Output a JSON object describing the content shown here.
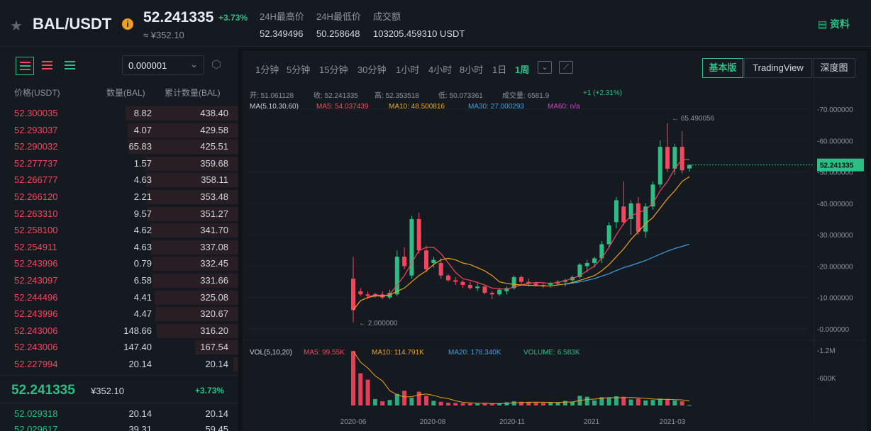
{
  "header": {
    "pair": "BAL/USDT",
    "info_icon": "i",
    "price": "52.241335",
    "change": "+3.73%",
    "price_cny": "≈ ¥352.10",
    "stats": [
      {
        "label": "24H最高价",
        "value": "52.349496"
      },
      {
        "label": "24H最低价",
        "value": "50.258648"
      },
      {
        "label": "成交额",
        "value": "103205.459310 USDT"
      }
    ],
    "profile_label": "资料"
  },
  "orderbook": {
    "precision": "0.000001",
    "columns": [
      "价格(USDT)",
      "数量(BAL)",
      "累计数量(BAL)"
    ],
    "asks": [
      {
        "price": "52.300035",
        "amount": "8.82",
        "total": "438.40"
      },
      {
        "price": "52.293037",
        "amount": "4.07",
        "total": "429.58"
      },
      {
        "price": "52.290032",
        "amount": "65.83",
        "total": "425.51"
      },
      {
        "price": "52.277737",
        "amount": "1.57",
        "total": "359.68"
      },
      {
        "price": "52.266777",
        "amount": "4.63",
        "total": "358.11"
      },
      {
        "price": "52.266120",
        "amount": "2.21",
        "total": "353.48"
      },
      {
        "price": "52.263310",
        "amount": "9.57",
        "total": "351.27"
      },
      {
        "price": "52.258100",
        "amount": "4.62",
        "total": "341.70"
      },
      {
        "price": "52.254911",
        "amount": "4.63",
        "total": "337.08"
      },
      {
        "price": "52.243996",
        "amount": "0.79",
        "total": "332.45"
      },
      {
        "price": "52.243097",
        "amount": "6.58",
        "total": "331.66"
      },
      {
        "price": "52.244496",
        "amount": "4.41",
        "total": "325.08"
      },
      {
        "price": "52.243996",
        "amount": "4.47",
        "total": "320.67"
      },
      {
        "price": "52.243006",
        "amount": "148.66",
        "total": "316.20"
      },
      {
        "price": "52.243006",
        "amount": "147.40",
        "total": "167.54"
      },
      {
        "price": "52.227994",
        "amount": "20.14",
        "total": "20.14"
      }
    ],
    "mid": {
      "price": "52.241335",
      "cny": "¥352.10",
      "change": "+3.73%"
    },
    "bids": [
      {
        "price": "52.029318",
        "amount": "20.14",
        "total": "20.14"
      },
      {
        "price": "52.029617",
        "amount": "39.31",
        "total": "59.45"
      }
    ]
  },
  "chart": {
    "timeframes": [
      "1分钟",
      "5分钟",
      "15分钟",
      "30分钟",
      "1小时",
      "4小时",
      "8小时",
      "1日",
      "1周"
    ],
    "active_timeframe": "1周",
    "views": [
      "基本版",
      "TradingView",
      "深度图"
    ],
    "active_view": "基本版",
    "ohlc": [
      {
        "label": "开:",
        "value": "51.061128"
      },
      {
        "label": "收:",
        "value": "52.241335"
      },
      {
        "label": "高:",
        "value": "52.353518"
      },
      {
        "label": "低:",
        "value": "50.073361"
      },
      {
        "label": "成交量:",
        "value": "6581.9"
      },
      {
        "label": "",
        "value": "+1 (+2.31%)"
      }
    ],
    "ma_label": "MA(5,10,30,60)",
    "ma_values": [
      {
        "label": "MA5: 54.037439",
        "color": "#f6465d"
      },
      {
        "label": "MA10: 48.500816",
        "color": "#f0a020"
      },
      {
        "label": "MA30: 27.000293",
        "color": "#3ba0e6"
      },
      {
        "label": "MA60: n/a",
        "color": "#d63cd6"
      }
    ],
    "vol_label": "VOL(5,10,20)",
    "vol_values": [
      {
        "label": "MA5: 99.55K",
        "color": "#f6465d"
      },
      {
        "label": "MA10: 114.791K",
        "color": "#f0a020"
      },
      {
        "label": "MA20: 178.340K",
        "color": "#3ba0e6"
      },
      {
        "label": "VOLUME: 6.583K",
        "color": "#2ebd85"
      }
    ],
    "max_label": "65.490056",
    "min_label": "2.000000",
    "current_price_tag": "52.241335",
    "colors": {
      "up": "#2ebd85",
      "down": "#f6465d",
      "ma5": "#f6465d",
      "ma10": "#f0a020",
      "ma30": "#3ba0e6"
    }
  },
  "chart_data": {
    "type": "candlestick",
    "y_ticks": [
      "70.000000",
      "60.000000",
      "50.000000",
      "40.000000",
      "30.000000",
      "20.000000",
      "10.000000",
      "0.000000"
    ],
    "vol_ticks": [
      "1.2M",
      "600K"
    ],
    "x_ticks": [
      "2020-06",
      "2020-08",
      "2020-11",
      "2021",
      "2021-03"
    ],
    "ylim": [
      0,
      70
    ],
    "volume_max": 1200000,
    "candles": [
      {
        "o": 16,
        "h": 23,
        "l": 2,
        "c": 6,
        "v": 1180000
      },
      {
        "o": 12,
        "h": 13,
        "l": 10.5,
        "c": 11,
        "v": 700000
      },
      {
        "o": 11,
        "h": 12,
        "l": 9.5,
        "c": 10.5,
        "v": 560000
      },
      {
        "o": 10.5,
        "h": 11.5,
        "l": 10,
        "c": 11,
        "v": 140000
      },
      {
        "o": 11,
        "h": 12,
        "l": 9.5,
        "c": 10,
        "v": 90000
      },
      {
        "o": 10,
        "h": 12.5,
        "l": 9.5,
        "c": 11.5,
        "v": 120000
      },
      {
        "o": 11,
        "h": 25,
        "l": 10.5,
        "c": 23,
        "v": 250000
      },
      {
        "o": 23,
        "h": 26,
        "l": 19,
        "c": 20,
        "v": 320000
      },
      {
        "o": 17,
        "h": 36,
        "l": 16,
        "c": 35,
        "v": 170000
      },
      {
        "o": 35,
        "h": 37,
        "l": 24,
        "c": 25,
        "v": 300000
      },
      {
        "o": 25,
        "h": 26.5,
        "l": 18,
        "c": 19,
        "v": 210000
      },
      {
        "o": 21,
        "h": 23,
        "l": 19.5,
        "c": 22,
        "v": 100000
      },
      {
        "o": 21,
        "h": 22.5,
        "l": 16,
        "c": 17,
        "v": 80000
      },
      {
        "o": 17,
        "h": 17.5,
        "l": 15,
        "c": 15.5,
        "v": 60000
      },
      {
        "o": 15.5,
        "h": 16.5,
        "l": 14,
        "c": 15,
        "v": 55000
      },
      {
        "o": 15,
        "h": 15.5,
        "l": 13,
        "c": 14,
        "v": 50000
      },
      {
        "o": 14,
        "h": 15,
        "l": 12.5,
        "c": 13,
        "v": 45000
      },
      {
        "o": 13,
        "h": 14.5,
        "l": 12,
        "c": 13.5,
        "v": 40000
      },
      {
        "o": 13.5,
        "h": 14,
        "l": 11,
        "c": 11.5,
        "v": 48000
      },
      {
        "o": 11.5,
        "h": 12,
        "l": 9.5,
        "c": 11,
        "v": 35000
      },
      {
        "o": 11,
        "h": 13,
        "l": 10.5,
        "c": 12.5,
        "v": 40000
      },
      {
        "o": 12,
        "h": 13.5,
        "l": 11,
        "c": 13,
        "v": 70000
      },
      {
        "o": 13,
        "h": 17,
        "l": 12.5,
        "c": 16.5,
        "v": 90000
      },
      {
        "o": 16.5,
        "h": 17,
        "l": 14,
        "c": 15,
        "v": 80000
      },
      {
        "o": 15,
        "h": 16,
        "l": 13.5,
        "c": 14.5,
        "v": 70000
      },
      {
        "o": 14.5,
        "h": 15,
        "l": 13.5,
        "c": 14,
        "v": 60000
      },
      {
        "o": 14,
        "h": 14.5,
        "l": 13,
        "c": 13.8,
        "v": 55000
      },
      {
        "o": 14,
        "h": 15,
        "l": 13.2,
        "c": 14.5,
        "v": 75000
      },
      {
        "o": 14.5,
        "h": 15.5,
        "l": 14,
        "c": 15,
        "v": 70000
      },
      {
        "o": 15,
        "h": 16,
        "l": 13.5,
        "c": 15.5,
        "v": 100000
      },
      {
        "o": 15.5,
        "h": 17,
        "l": 15,
        "c": 16.5,
        "v": 85000
      },
      {
        "o": 16.5,
        "h": 21,
        "l": 16,
        "c": 20.5,
        "v": 210000
      },
      {
        "o": 20,
        "h": 22,
        "l": 18,
        "c": 21,
        "v": 190000
      },
      {
        "o": 21,
        "h": 23,
        "l": 19.5,
        "c": 22.5,
        "v": 110000
      },
      {
        "o": 22.5,
        "h": 28,
        "l": 21,
        "c": 27,
        "v": 180000
      },
      {
        "o": 27,
        "h": 34,
        "l": 26,
        "c": 33,
        "v": 160000
      },
      {
        "o": 34,
        "h": 42,
        "l": 32,
        "c": 41,
        "v": 200000
      },
      {
        "o": 39,
        "h": 47,
        "l": 33,
        "c": 34,
        "v": 190000
      },
      {
        "o": 35,
        "h": 41,
        "l": 30,
        "c": 40,
        "v": 130000
      },
      {
        "o": 40,
        "h": 42,
        "l": 30,
        "c": 31,
        "v": 150000
      },
      {
        "o": 31,
        "h": 40,
        "l": 29,
        "c": 39,
        "v": 110000
      },
      {
        "o": 39,
        "h": 47,
        "l": 38,
        "c": 46,
        "v": 120000
      },
      {
        "o": 46,
        "h": 60,
        "l": 45,
        "c": 58,
        "v": 150000
      },
      {
        "o": 58,
        "h": 65.5,
        "l": 50,
        "c": 51,
        "v": 140000
      },
      {
        "o": 51,
        "h": 59,
        "l": 49,
        "c": 58,
        "v": 110000
      },
      {
        "o": 58,
        "h": 63,
        "l": 49.5,
        "c": 50.5,
        "v": 90000
      },
      {
        "o": 51.1,
        "h": 52.35,
        "l": 50.07,
        "c": 52.24,
        "v": 6583
      }
    ],
    "ma5": [
      6,
      9,
      10,
      11,
      10.5,
      11,
      14,
      17,
      21,
      25,
      26,
      26,
      24,
      21,
      18,
      16,
      15.5,
      14.8,
      14,
      13,
      12.8,
      12.6,
      13.4,
      14,
      14.5,
      14.8,
      14.7,
      14.5,
      14.8,
      15.4,
      16,
      17,
      18.5,
      20,
      22.5,
      26,
      30,
      33.5,
      36,
      37,
      38,
      40,
      44,
      47,
      51,
      54,
      54
    ],
    "ma10": [
      6,
      9,
      10,
      10.5,
      10.5,
      10.8,
      12,
      13,
      15,
      17,
      18.5,
      20.5,
      22,
      22.5,
      22,
      21,
      20.5,
      19.5,
      18.5,
      17,
      15,
      14.5,
      14.2,
      14,
      13.9,
      13.8,
      13.7,
      13.7,
      14,
      14.3,
      14.8,
      15.5,
      16.2,
      17,
      18.5,
      20.5,
      23,
      25.5,
      28.5,
      31,
      33.5,
      35.5,
      38.5,
      41.5,
      44,
      47,
      48.5
    ],
    "ma30": [
      null,
      null,
      null,
      null,
      null,
      null,
      null,
      null,
      null,
      null,
      null,
      null,
      null,
      null,
      null,
      null,
      null,
      null,
      null,
      null,
      null,
      null,
      null,
      null,
      null,
      null,
      null,
      null,
      null,
      14.2,
      14.6,
      15,
      15.5,
      16,
      16.8,
      17.6,
      18.6,
      19.5,
      20.2,
      21,
      21.8,
      22.8,
      23.8,
      24.8,
      25.6,
      26.3,
      27
    ]
  }
}
